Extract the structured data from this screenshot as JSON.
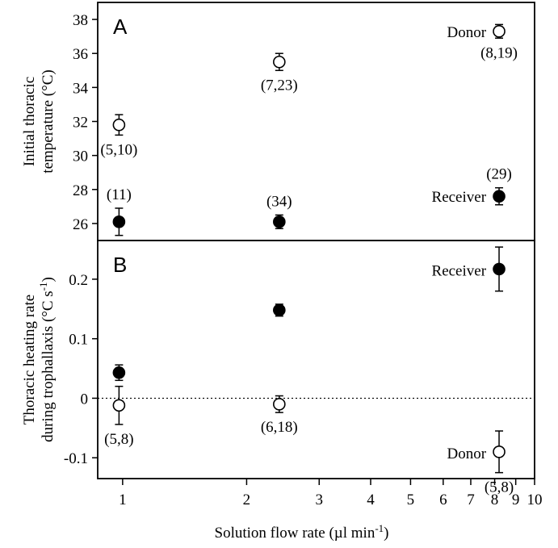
{
  "chart_data": [
    {
      "type": "scatter",
      "panel": "A",
      "ylabel_lines": [
        "Initial thoracic",
        "temperature (°C)"
      ],
      "x_scale": "log",
      "xlim": [
        0.87,
        10
      ],
      "ylim": [
        25.0,
        39.0
      ],
      "yticks": [
        26,
        28,
        30,
        32,
        34,
        36,
        38
      ],
      "series": [
        {
          "name": "Donor",
          "marker": "open-circle",
          "points": [
            {
              "x": 0.98,
              "y": 31.8,
              "err": 0.6,
              "label": "(5,10)"
            },
            {
              "x": 2.4,
              "y": 35.5,
              "err": 0.5,
              "label": "(7,23)"
            },
            {
              "x": 8.2,
              "y": 37.3,
              "err": 0.4,
              "label": "(8,19)"
            }
          ]
        },
        {
          "name": "Receiver",
          "marker": "filled-circle",
          "points": [
            {
              "x": 0.98,
              "y": 26.1,
              "err": 0.8,
              "label": "(11)"
            },
            {
              "x": 2.4,
              "y": 26.1,
              "err": 0.4,
              "label": "(34)"
            },
            {
              "x": 8.2,
              "y": 27.6,
              "err": 0.5,
              "label": "(29)"
            }
          ]
        }
      ]
    },
    {
      "type": "scatter",
      "panel": "B",
      "ylabel_lines": [
        "Thoracic heating rate",
        "during trophallaxis (°C s"
      ],
      "ylabel_sup": "-1",
      "ylabel_tail": ")",
      "x_scale": "log",
      "xlim": [
        0.87,
        10
      ],
      "ylim": [
        -0.135,
        0.265
      ],
      "yticks": [
        -0.1,
        0,
        0.1,
        0.2
      ],
      "ytick_labels": [
        "-0.1",
        "0",
        "0.1",
        "0.2"
      ],
      "reference_line": {
        "y": 0,
        "style": "dotted"
      },
      "xlabel_main": "Solution flow rate (µl min",
      "xlabel_sup": "-1",
      "xlabel_tail": ")",
      "xticks": [
        1,
        2,
        3,
        4,
        5,
        6,
        7,
        8,
        9,
        10
      ],
      "xtick_labels": [
        "1",
        "2",
        "3",
        "4",
        "5",
        "6",
        "7",
        "8",
        "9",
        "10"
      ],
      "series": [
        {
          "name": "Receiver",
          "marker": "filled-circle",
          "points": [
            {
              "x": 0.98,
              "y": 0.043,
              "err": 0.013
            },
            {
              "x": 2.4,
              "y": 0.148,
              "err": 0.01
            },
            {
              "x": 8.2,
              "y": 0.217,
              "err": 0.037
            }
          ]
        },
        {
          "name": "Donor",
          "marker": "open-circle",
          "points": [
            {
              "x": 0.98,
              "y": -0.012,
              "err": 0.032,
              "label": "(5,8)"
            },
            {
              "x": 2.4,
              "y": -0.01,
              "err": 0.014,
              "label": "(6,18)"
            },
            {
              "x": 8.2,
              "y": -0.09,
              "err": 0.035,
              "label": "(5,8)"
            }
          ]
        }
      ]
    }
  ]
}
